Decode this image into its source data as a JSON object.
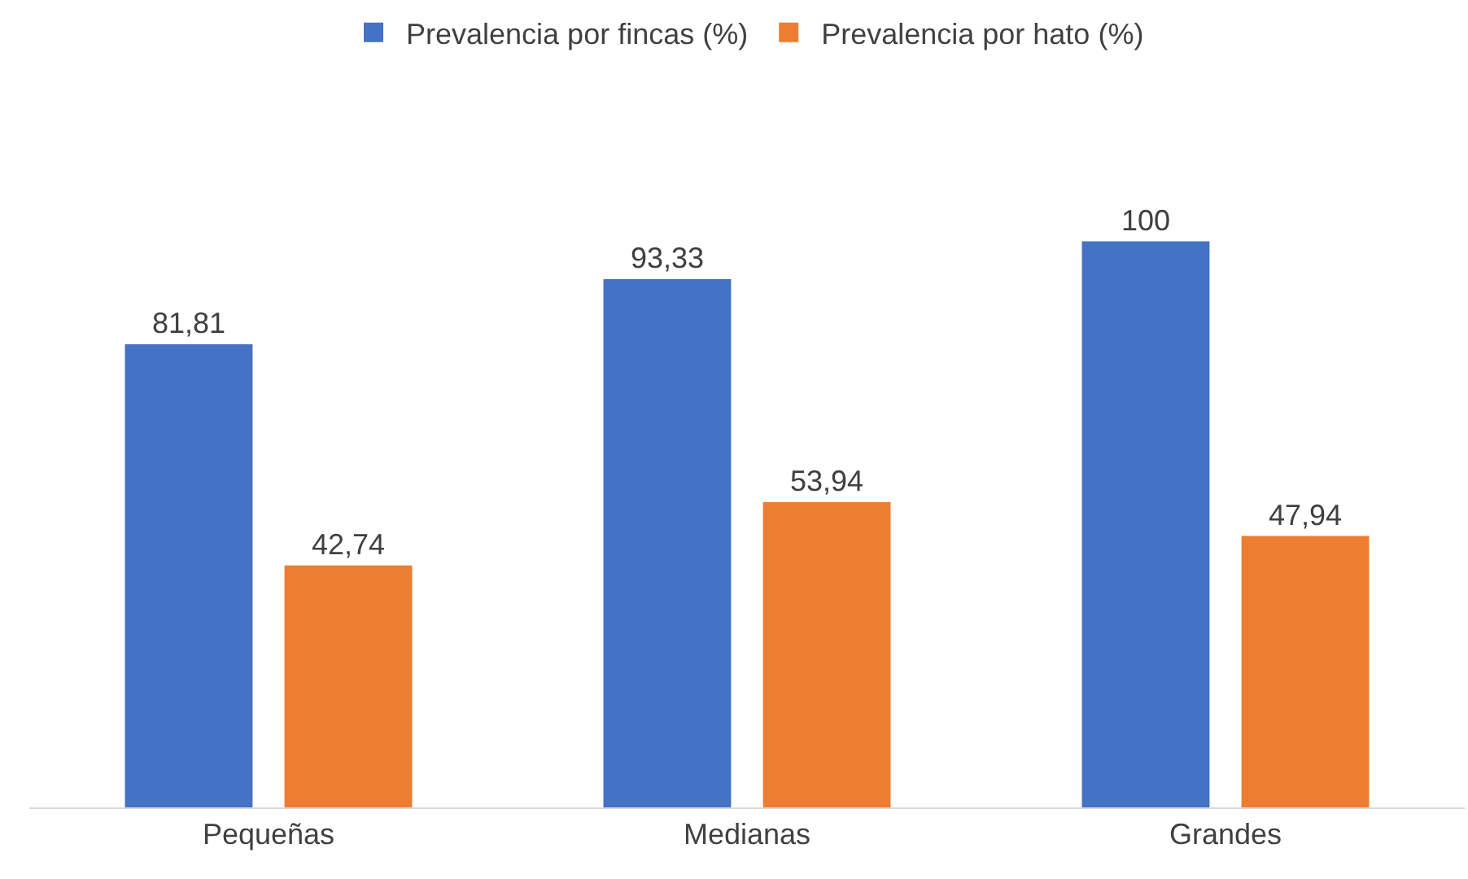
{
  "chart_data": {
    "type": "bar",
    "categories": [
      "Pequeñas",
      "Medianas",
      "Grandes"
    ],
    "series": [
      {
        "name": "Prevalencia por fincas (%)",
        "color": "#4472c4",
        "values": [
          81.81,
          93.33,
          100
        ],
        "value_labels": [
          "81,81",
          "93,33",
          "100"
        ]
      },
      {
        "name": "Prevalencia por hato (%)",
        "color": "#ed7d31",
        "values": [
          42.74,
          53.94,
          47.94
        ],
        "value_labels": [
          "42,74",
          "53,94",
          "47,94"
        ]
      }
    ],
    "tick_labels": "x",
    "grid": false,
    "legend": "top"
  }
}
